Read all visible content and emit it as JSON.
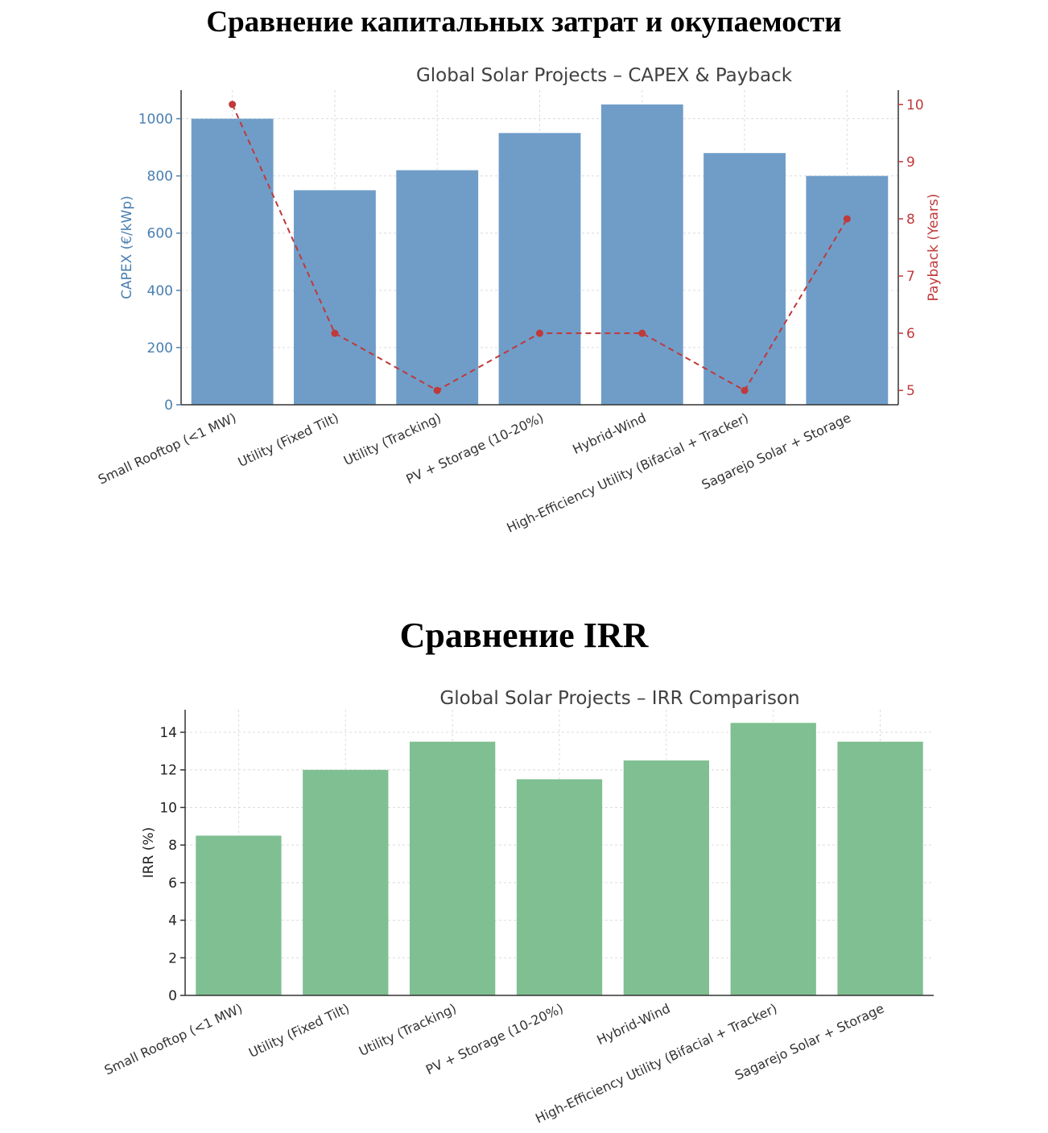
{
  "page": {
    "heading1": "Сравнение капитальных затрат и окупаемости",
    "heading2": "Сравнение IRR"
  },
  "chart_data": [
    {
      "type": "bar",
      "title": "Global Solar Projects – CAPEX & Payback",
      "categories": [
        "Small Rooftop (<1 MW)",
        "Utility (Fixed Tilt)",
        "Utility (Tracking)",
        "PV + Storage (10-20%)",
        "Hybrid-Wind",
        "High-Efficiency Utility (Bifacial + Tracker)",
        "Sagarejo Solar + Storage"
      ],
      "series": [
        {
          "values": [
            1000,
            750,
            820,
            950,
            1050,
            880,
            800
          ],
          "axis": "left",
          "style": "bar",
          "color": "#6f9dc8"
        },
        {
          "values": [
            10,
            6,
            5,
            6,
            6,
            5,
            8
          ],
          "axis": "right",
          "style": "dashed-line-markers",
          "color": "#c0393b"
        }
      ],
      "ylabel": "CAPEX (€/kWp)",
      "ylabel_right": "Payback (Years)",
      "ylim": [
        0,
        1100
      ],
      "ylim_right": [
        4.75,
        10.25
      ],
      "yticks": [
        0,
        200,
        400,
        600,
        800,
        1000
      ],
      "yticks_right": [
        5,
        6,
        7,
        8,
        9,
        10
      ],
      "grid": true,
      "left_axis_color": "#4a7fb0",
      "right_axis_color": "#c0393b"
    },
    {
      "type": "bar",
      "title": "Global Solar Projects – IRR Comparison",
      "categories": [
        "Small Rooftop (<1 MW)",
        "Utility (Fixed Tilt)",
        "Utility (Tracking)",
        "PV + Storage (10-20%)",
        "Hybrid-Wind",
        "High-Efficiency Utility (Bifacial + Tracker)",
        "Sagarejo Solar + Storage"
      ],
      "series": [
        {
          "values": [
            8.5,
            12,
            13.5,
            11.5,
            12.5,
            14.5,
            13.5
          ],
          "color": "#7fbf92"
        }
      ],
      "ylabel": "IRR (%)",
      "ylim": [
        0,
        15.2
      ],
      "yticks": [
        0,
        2,
        4,
        6,
        8,
        10,
        12,
        14
      ],
      "grid": true
    }
  ]
}
